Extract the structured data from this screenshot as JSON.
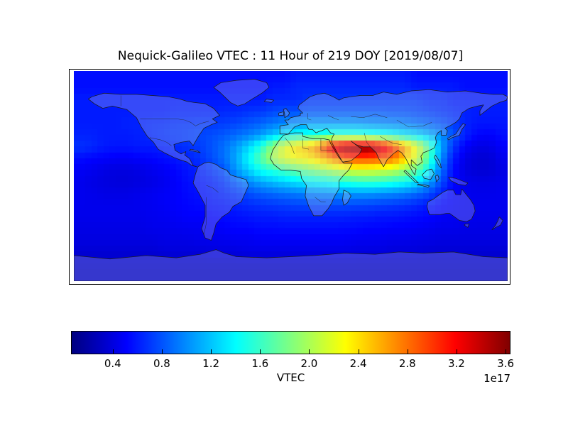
{
  "chart_data": {
    "type": "heatmap",
    "title": "Nequick-Galileo VTEC : 11 Hour of 219 DOY [2019/08/07]",
    "projection": "equirectangular",
    "x": {
      "label": "",
      "range": [
        -180,
        180
      ],
      "units": "degrees longitude"
    },
    "y": {
      "label": "",
      "range": [
        -90,
        90
      ],
      "units": "degrees latitude"
    },
    "legend_position": "bottom-colorbar",
    "grid_lines": false,
    "colorbar": {
      "label": "VTEC",
      "offset_text": "1e17",
      "colormap": "jet",
      "vmin": 0.06,
      "vmax": 3.64,
      "ticks": [
        0.4,
        0.8,
        1.2,
        1.6,
        2.0,
        2.4,
        2.8,
        3.2,
        3.6
      ],
      "tick_decimals": 1
    },
    "grid": {
      "units": "1e17",
      "lon_start": -180,
      "lon_step": 10,
      "lat_start": 90,
      "lat_step": -10,
      "values": [
        [
          0.55,
          0.55,
          0.55,
          0.55,
          0.55,
          0.55,
          0.55,
          0.55,
          0.55,
          0.55,
          0.55,
          0.55,
          0.55,
          0.55,
          0.55,
          0.55,
          0.55,
          0.55,
          0.6,
          0.6,
          0.6,
          0.6,
          0.6,
          0.6,
          0.6,
          0.6,
          0.6,
          0.6,
          0.55,
          0.55,
          0.55,
          0.55,
          0.55,
          0.55,
          0.55,
          0.55
        ],
        [
          0.55,
          0.55,
          0.55,
          0.55,
          0.55,
          0.55,
          0.55,
          0.55,
          0.55,
          0.55,
          0.55,
          0.55,
          0.55,
          0.55,
          0.55,
          0.55,
          0.6,
          0.6,
          0.65,
          0.65,
          0.65,
          0.65,
          0.65,
          0.65,
          0.65,
          0.65,
          0.65,
          0.65,
          0.6,
          0.6,
          0.6,
          0.6,
          0.55,
          0.55,
          0.55,
          0.55
        ],
        [
          0.6,
          0.6,
          0.6,
          0.6,
          0.6,
          0.6,
          0.6,
          0.6,
          0.6,
          0.6,
          0.6,
          0.6,
          0.6,
          0.6,
          0.6,
          0.6,
          0.65,
          0.65,
          0.65,
          0.7,
          0.7,
          0.7,
          0.7,
          0.7,
          0.7,
          0.7,
          0.7,
          0.7,
          0.7,
          0.65,
          0.65,
          0.6,
          0.6,
          0.6,
          0.6,
          0.6
        ],
        [
          0.6,
          0.6,
          0.6,
          0.6,
          0.6,
          0.6,
          0.6,
          0.6,
          0.62,
          0.62,
          0.62,
          0.62,
          0.65,
          0.65,
          0.68,
          0.7,
          0.75,
          0.78,
          0.78,
          0.8,
          0.8,
          0.8,
          0.8,
          0.8,
          0.8,
          0.8,
          0.78,
          0.78,
          0.75,
          0.72,
          0.68,
          0.65,
          0.62,
          0.6,
          0.6,
          0.6
        ],
        [
          0.6,
          0.6,
          0.6,
          0.6,
          0.62,
          0.62,
          0.65,
          0.65,
          0.68,
          0.68,
          0.7,
          0.7,
          0.72,
          0.75,
          0.8,
          0.85,
          0.92,
          0.98,
          1.02,
          1.05,
          1.05,
          1.05,
          1.05,
          1.05,
          1.02,
          1.0,
          0.98,
          0.95,
          0.9,
          0.85,
          0.8,
          0.72,
          0.62,
          0.58,
          0.58,
          0.58
        ],
        [
          0.62,
          0.62,
          0.6,
          0.6,
          0.6,
          0.62,
          0.65,
          0.68,
          0.7,
          0.72,
          0.75,
          0.78,
          0.82,
          0.88,
          0.95,
          1.05,
          1.2,
          1.35,
          1.45,
          1.5,
          1.55,
          1.6,
          1.6,
          1.6,
          1.55,
          1.5,
          1.45,
          1.35,
          1.28,
          1.15,
          1.0,
          0.8,
          0.62,
          0.52,
          0.5,
          0.55
        ],
        [
          0.68,
          0.65,
          0.6,
          0.58,
          0.58,
          0.6,
          0.6,
          0.62,
          0.65,
          0.68,
          0.72,
          0.8,
          0.9,
          1.05,
          1.25,
          1.5,
          1.9,
          2.2,
          2.4,
          2.5,
          2.8,
          3.3,
          3.55,
          3.6,
          3.6,
          3.4,
          3.05,
          2.6,
          2.2,
          1.7,
          1.1,
          0.7,
          0.5,
          0.42,
          0.42,
          0.5
        ],
        [
          0.55,
          0.52,
          0.5,
          0.48,
          0.48,
          0.5,
          0.52,
          0.55,
          0.58,
          0.62,
          0.68,
          0.78,
          0.9,
          1.1,
          1.4,
          1.7,
          2.0,
          2.2,
          2.3,
          2.35,
          2.5,
          2.7,
          2.9,
          2.95,
          2.95,
          2.9,
          2.8,
          2.5,
          2.15,
          1.65,
          1.0,
          0.6,
          0.42,
          0.36,
          0.36,
          0.45
        ],
        [
          0.48,
          0.45,
          0.42,
          0.4,
          0.4,
          0.42,
          0.45,
          0.48,
          0.52,
          0.58,
          0.62,
          0.7,
          0.8,
          1.05,
          1.25,
          1.45,
          1.55,
          1.65,
          1.75,
          1.85,
          1.95,
          2.05,
          2.15,
          2.2,
          2.2,
          2.15,
          2.1,
          1.95,
          1.75,
          1.4,
          0.9,
          0.55,
          0.4,
          0.36,
          0.36,
          0.42
        ],
        [
          0.45,
          0.42,
          0.4,
          0.38,
          0.38,
          0.4,
          0.42,
          0.45,
          0.5,
          0.55,
          0.58,
          0.62,
          0.7,
          0.85,
          0.98,
          1.1,
          1.18,
          1.25,
          1.32,
          1.38,
          1.42,
          1.48,
          1.52,
          1.58,
          1.6,
          1.58,
          1.52,
          1.45,
          1.32,
          1.08,
          0.78,
          0.52,
          0.44,
          0.42,
          0.42,
          0.44
        ],
        [
          0.45,
          0.44,
          0.42,
          0.42,
          0.42,
          0.44,
          0.46,
          0.48,
          0.5,
          0.54,
          0.56,
          0.6,
          0.64,
          0.7,
          0.78,
          0.84,
          0.88,
          0.92,
          0.95,
          0.98,
          1.0,
          1.02,
          1.05,
          1.05,
          1.05,
          1.02,
          1.0,
          0.95,
          0.88,
          0.78,
          0.62,
          0.5,
          0.45,
          0.44,
          0.44,
          0.45
        ],
        [
          0.45,
          0.44,
          0.44,
          0.44,
          0.44,
          0.45,
          0.46,
          0.48,
          0.5,
          0.52,
          0.54,
          0.56,
          0.58,
          0.62,
          0.65,
          0.68,
          0.7,
          0.72,
          0.74,
          0.75,
          0.76,
          0.76,
          0.76,
          0.75,
          0.74,
          0.72,
          0.7,
          0.68,
          0.64,
          0.58,
          0.52,
          0.48,
          0.46,
          0.45,
          0.45,
          0.45
        ],
        [
          0.44,
          0.44,
          0.44,
          0.44,
          0.44,
          0.44,
          0.45,
          0.46,
          0.48,
          0.5,
          0.5,
          0.52,
          0.54,
          0.56,
          0.58,
          0.6,
          0.6,
          0.62,
          0.62,
          0.62,
          0.62,
          0.62,
          0.62,
          0.6,
          0.6,
          0.58,
          0.58,
          0.56,
          0.54,
          0.52,
          0.48,
          0.46,
          0.45,
          0.44,
          0.44,
          0.44
        ],
        [
          0.42,
          0.42,
          0.42,
          0.42,
          0.42,
          0.42,
          0.44,
          0.44,
          0.45,
          0.46,
          0.46,
          0.48,
          0.5,
          0.52,
          0.52,
          0.54,
          0.54,
          0.55,
          0.55,
          0.55,
          0.55,
          0.55,
          0.54,
          0.54,
          0.52,
          0.52,
          0.5,
          0.5,
          0.48,
          0.46,
          0.44,
          0.44,
          0.42,
          0.42,
          0.42,
          0.42
        ],
        [
          0.4,
          0.4,
          0.4,
          0.4,
          0.4,
          0.4,
          0.4,
          0.42,
          0.42,
          0.42,
          0.44,
          0.44,
          0.45,
          0.46,
          0.46,
          0.48,
          0.48,
          0.48,
          0.48,
          0.48,
          0.48,
          0.48,
          0.48,
          0.46,
          0.46,
          0.45,
          0.44,
          0.44,
          0.42,
          0.42,
          0.4,
          0.4,
          0.4,
          0.4,
          0.4,
          0.4
        ],
        [
          0.36,
          0.36,
          0.36,
          0.36,
          0.36,
          0.36,
          0.36,
          0.38,
          0.38,
          0.38,
          0.38,
          0.4,
          0.4,
          0.4,
          0.42,
          0.42,
          0.42,
          0.42,
          0.42,
          0.42,
          0.42,
          0.42,
          0.42,
          0.4,
          0.4,
          0.4,
          0.38,
          0.38,
          0.38,
          0.36,
          0.36,
          0.36,
          0.36,
          0.36,
          0.36,
          0.36
        ],
        [
          0.32,
          0.32,
          0.32,
          0.32,
          0.32,
          0.32,
          0.32,
          0.32,
          0.32,
          0.32,
          0.32,
          0.32,
          0.32,
          0.32,
          0.32,
          0.32,
          0.32,
          0.32,
          0.32,
          0.32,
          0.32,
          0.32,
          0.32,
          0.32,
          0.32,
          0.32,
          0.32,
          0.32,
          0.32,
          0.32,
          0.32,
          0.32,
          0.32,
          0.32,
          0.32,
          0.32
        ],
        [
          0.3,
          0.3,
          0.3,
          0.3,
          0.3,
          0.3,
          0.3,
          0.3,
          0.3,
          0.3,
          0.3,
          0.3,
          0.3,
          0.3,
          0.3,
          0.3,
          0.3,
          0.3,
          0.3,
          0.3,
          0.3,
          0.3,
          0.3,
          0.3,
          0.3,
          0.3,
          0.3,
          0.3,
          0.3,
          0.3,
          0.3,
          0.3,
          0.3,
          0.3,
          0.3,
          0.3
        ]
      ]
    },
    "colors": {
      "background": "#ffffff",
      "frame": "#000000",
      "coastline": "#1c1c1c",
      "border_lines": "#222222",
      "land_fill": "rgba(215,218,232,0.25)"
    }
  }
}
